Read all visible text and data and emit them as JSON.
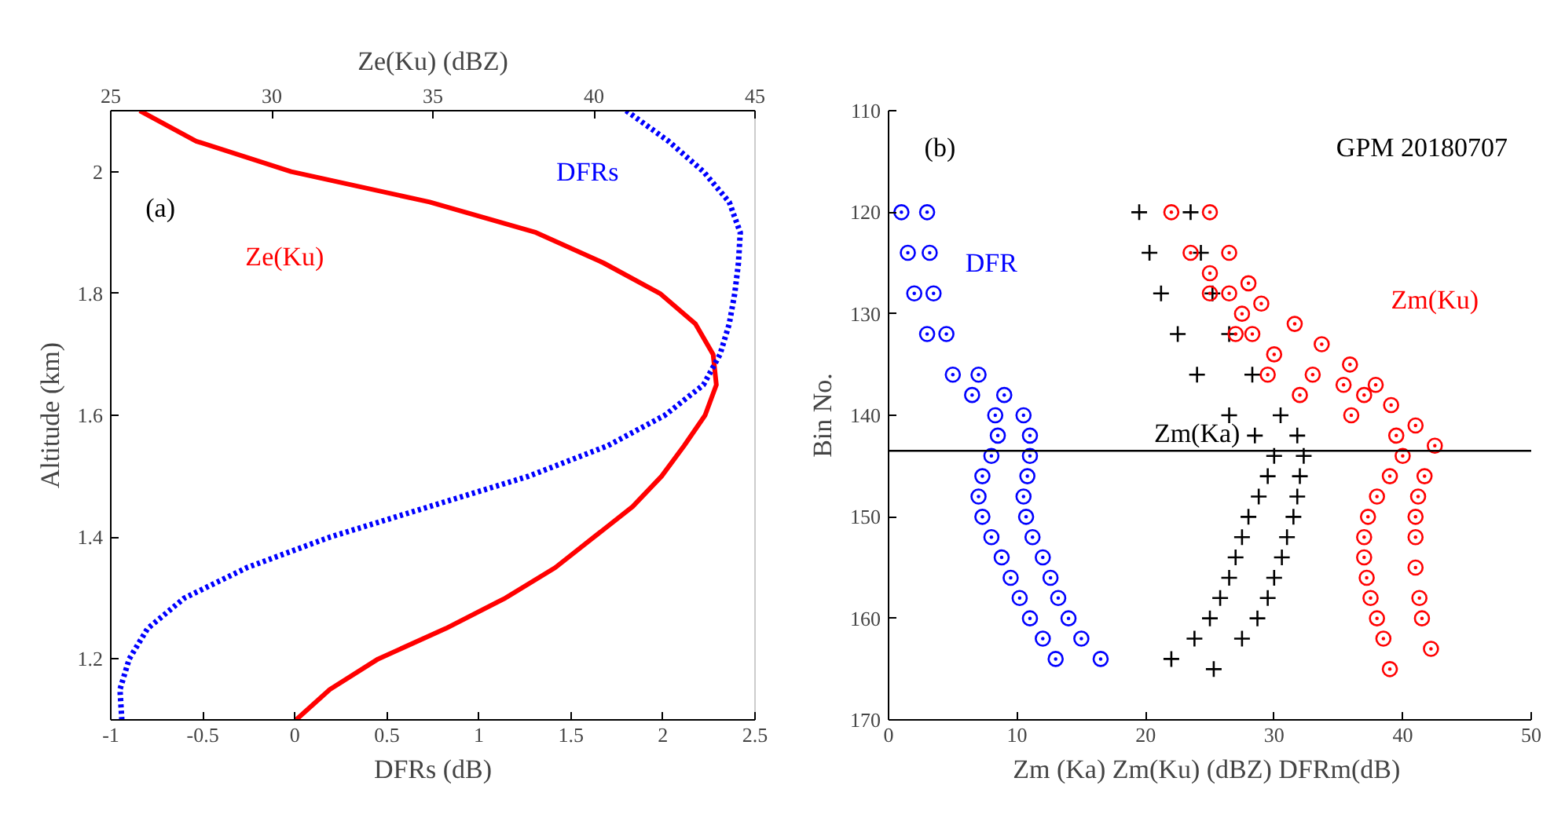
{
  "chart_data": [
    {
      "type": "line",
      "xlabel": "DFRs (dB)",
      "x2label": "Ze(Ku) (dBZ)",
      "ylabel": "Altitude (km)",
      "xlim": [
        -1,
        2.5
      ],
      "xticks": [
        -1,
        -0.5,
        0,
        0.5,
        1,
        1.5,
        2,
        2.5
      ],
      "x2lim": [
        25,
        45
      ],
      "x2ticks": [
        25,
        30,
        35,
        40,
        45
      ],
      "ylim": [
        1.1,
        2.1
      ],
      "yticks": [
        1.2,
        1.4,
        1.6,
        1.8,
        2
      ],
      "grid": false,
      "series": [
        {
          "name": "Ze(Ku)",
          "axis": "x2",
          "color": "#ff0000",
          "line_style": "solid",
          "x": [
            25.9,
            27.65,
            30.6,
            34.9,
            38.2,
            40.3,
            42.05,
            43.15,
            43.7,
            43.8,
            43.45,
            42.8,
            42.1,
            41.2,
            40.0,
            38.8,
            37.25,
            35.4,
            33.3,
            31.8,
            30.75
          ],
          "values": [
            2.1,
            2.05,
            2.0,
            1.95,
            1.9,
            1.85,
            1.8,
            1.75,
            1.7,
            1.65,
            1.6,
            1.55,
            1.5,
            1.45,
            1.4,
            1.35,
            1.3,
            1.25,
            1.2,
            1.15,
            1.1
          ]
        },
        {
          "name": "DFRs",
          "color": "#0000ff",
          "line_style": "dotted",
          "x": [
            1.8,
            2.03,
            2.22,
            2.36,
            2.42,
            2.41,
            2.39,
            2.36,
            2.31,
            2.22,
            2.01,
            1.7,
            1.27,
            0.73,
            0.19,
            -0.26,
            -0.6,
            -0.8,
            -0.9,
            -0.95,
            -0.94
          ],
          "values": [
            2.1,
            2.05,
            2.0,
            1.95,
            1.9,
            1.85,
            1.8,
            1.75,
            1.7,
            1.65,
            1.6,
            1.55,
            1.5,
            1.45,
            1.4,
            1.35,
            1.3,
            1.25,
            1.2,
            1.15,
            1.1
          ]
        }
      ],
      "annotations": [
        "(a)"
      ]
    },
    {
      "type": "scatter",
      "xlabel": "Zm (Ka) Zm(Ku) (dBZ)  DFRm(dB)",
      "ylabel": "Bin No.",
      "xlim": [
        0,
        50
      ],
      "xticks": [
        0,
        10,
        20,
        30,
        40,
        50
      ],
      "ylim": [
        170,
        110
      ],
      "yticks": [
        110,
        120,
        130,
        140,
        150,
        160,
        170
      ],
      "grid": false,
      "series": [
        {
          "name": "DFR",
          "color": "#0000ff",
          "marker": "circle",
          "x": [
            1,
            1.5,
            2,
            3,
            5,
            6.5,
            8.3,
            8.5,
            8,
            7.3,
            7,
            7.3,
            8,
            8.8,
            9.5,
            10.2,
            11,
            12,
            13,
            3,
            3.2,
            3.5,
            4.5,
            7,
            9,
            10.5,
            11,
            11,
            10.8,
            10.5,
            10.7,
            11.2,
            12,
            12.6,
            13.2,
            14,
            15,
            16.5
          ],
          "values": [
            120,
            124,
            128,
            132,
            136,
            138,
            140,
            142,
            144,
            146,
            148,
            150,
            152,
            154,
            156,
            158,
            160,
            162,
            164,
            120,
            124,
            128,
            132,
            136,
            138,
            140,
            142,
            144,
            146,
            148,
            150,
            152,
            154,
            156,
            158,
            160,
            162,
            164
          ]
        },
        {
          "name": "Zm(Ka)",
          "color": "#000000",
          "marker": "cross",
          "x": [
            19.5,
            20.3,
            21.2,
            22.5,
            24,
            26.5,
            28.5,
            30,
            29.5,
            28.8,
            28,
            27.5,
            27,
            26.5,
            25.8,
            25,
            23.8,
            22,
            23.5,
            24.3,
            25.2,
            26.5,
            28.3,
            30.5,
            31.8,
            32.3,
            32,
            31.8,
            31.5,
            31,
            30.6,
            30,
            29.5,
            28.7,
            27.5,
            25.3
          ],
          "values": [
            120,
            124,
            128,
            132,
            136,
            140,
            142,
            144,
            146,
            148,
            150,
            152,
            154,
            156,
            158,
            160,
            162,
            164,
            120,
            124,
            128,
            132,
            136,
            140,
            142,
            144,
            146,
            148,
            150,
            152,
            154,
            156,
            158,
            160,
            162,
            165
          ]
        },
        {
          "name": "Zm(Ku)",
          "color": "#ff0000",
          "marker": "circle",
          "x": [
            22,
            23.5,
            25,
            27,
            29.5,
            32,
            36,
            39.5,
            40,
            39,
            38,
            37.3,
            37,
            37,
            37.2,
            37.5,
            38,
            38.5,
            39,
            25,
            26.5,
            28,
            29,
            31.6,
            33.7,
            35.9,
            37.9,
            39.1,
            41,
            42.5,
            41.7,
            41.2,
            41,
            41,
            41,
            41.3,
            41.5,
            42.2,
            25,
            26.5,
            27.5,
            28.3,
            30,
            33,
            35.4,
            37
          ],
          "values": [
            120,
            124,
            128,
            132,
            136,
            138,
            140,
            142,
            144,
            146,
            148,
            150,
            152,
            154,
            156,
            158,
            160,
            162,
            165,
            120,
            124,
            127,
            129,
            131,
            133,
            135,
            137,
            139,
            141,
            143,
            146,
            148,
            150,
            152,
            155,
            158,
            160,
            163,
            126,
            128,
            130,
            132,
            134,
            136,
            137,
            138
          ]
        }
      ],
      "ref_lines": [
        {
          "axis": "y",
          "value": 143.5,
          "color": "#000000"
        }
      ],
      "annotations": [
        "(b)",
        "GPM 20180707"
      ]
    }
  ]
}
